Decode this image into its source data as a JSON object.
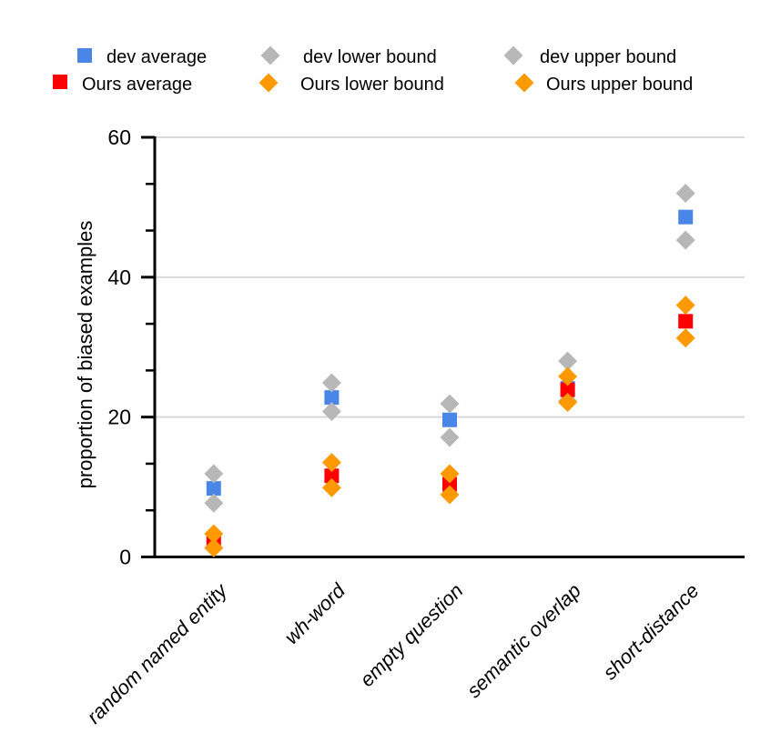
{
  "chart_data": {
    "type": "scatter",
    "title": "",
    "xlabel": "",
    "ylabel": "proportion of biased examples",
    "ylim": [
      0,
      60
    ],
    "yticks": [
      0,
      20,
      40,
      60
    ],
    "minor_ytick_step": 6.667,
    "grid": "horizontal gridlines at 20, 40, 60",
    "legend_position": "top, two rows, three columns",
    "axis_color": "#000000",
    "gridline_color": "#d9d9d9",
    "categories": [
      "random named entity",
      "wh-word",
      "empty question",
      "semantic overlap",
      "short-distance"
    ],
    "series": [
      {
        "name": "dev average",
        "marker": "square",
        "color": "#4a86e8",
        "values": [
          9.8,
          22.8,
          19.6,
          24.1,
          48.6
        ]
      },
      {
        "name": "dev lower bound",
        "marker": "diamond",
        "color": "#b7b7b7",
        "values": [
          7.7,
          20.8,
          17.1,
          22.3,
          45.3
        ]
      },
      {
        "name": "dev upper bound",
        "marker": "diamond",
        "color": "#b7b7b7",
        "values": [
          11.9,
          24.9,
          21.9,
          28.0,
          52.0
        ]
      },
      {
        "name": "Ours average",
        "marker": "square",
        "color": "#ff0000",
        "values": [
          2.2,
          11.6,
          10.4,
          23.9,
          33.7
        ]
      },
      {
        "name": "Ours lower bound",
        "marker": "diamond",
        "color": "#ff9900",
        "values": [
          1.3,
          9.9,
          8.9,
          22.1,
          31.3
        ]
      },
      {
        "name": "Ours upper bound",
        "marker": "diamond",
        "color": "#ff9900",
        "values": [
          3.3,
          13.5,
          11.9,
          25.8,
          36.0
        ]
      }
    ]
  }
}
